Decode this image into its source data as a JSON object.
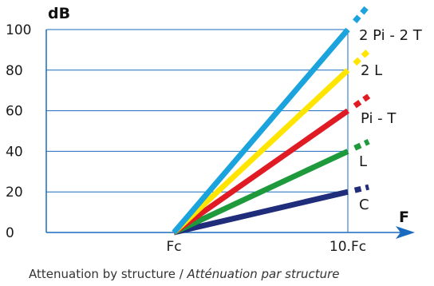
{
  "caption": {
    "english": "Attenuation by structure",
    "separator": " / ",
    "french": "Atténuation par structure"
  },
  "chart_data": {
    "type": "line",
    "title": "Attenuation by structure / Atténuation par structure",
    "xlabel": "F",
    "ylabel": "dB",
    "x_scale": "log",
    "x_ticks": [
      "Fc",
      "10.Fc"
    ],
    "y_ticks": [
      0,
      20,
      40,
      60,
      80,
      100
    ],
    "ylim": [
      0,
      100
    ],
    "grid": true,
    "legend": "labels at line ends",
    "series": [
      {
        "name": "C",
        "color": "#1f2d7a",
        "points": [
          {
            "x": "Fc",
            "y": 0
          },
          {
            "x": "10.Fc",
            "y": 20
          }
        ]
      },
      {
        "name": "L",
        "color": "#1e9a3c",
        "points": [
          {
            "x": "Fc",
            "y": 0
          },
          {
            "x": "10.Fc",
            "y": 40
          }
        ]
      },
      {
        "name": "Pi - T",
        "color": "#e01b24",
        "points": [
          {
            "x": "Fc",
            "y": 0
          },
          {
            "x": "10.Fc",
            "y": 60
          }
        ]
      },
      {
        "name": "2 L",
        "color": "#ffe500",
        "points": [
          {
            "x": "Fc",
            "y": 0
          },
          {
            "x": "10.Fc",
            "y": 80
          }
        ]
      },
      {
        "name": "2 Pi - 2 T",
        "color": "#1aa3dd",
        "points": [
          {
            "x": "Fc",
            "y": 0
          },
          {
            "x": "10.Fc",
            "y": 100
          }
        ]
      }
    ],
    "axis_color": "#1a6bbf"
  }
}
